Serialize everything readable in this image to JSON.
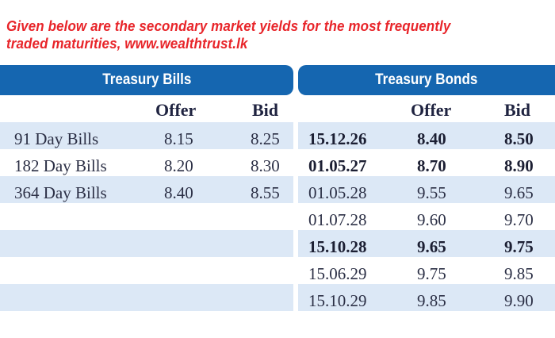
{
  "caption": {
    "line1": "Given below are the secondary market yields for the most frequently",
    "line2": "traded maturities, www.wealthtrust.lk"
  },
  "colors": {
    "caption": "#e8252a",
    "band": "#1566b0",
    "row_shade": "#dce8f6"
  },
  "bills": {
    "title": "Treasury Bills",
    "offer_header": "Offer",
    "bid_header": "Bid",
    "rows": [
      {
        "name": "91 Day Bills",
        "offer": "8.15",
        "bid": "8.25"
      },
      {
        "name": "182 Day Bills",
        "offer": "8.20",
        "bid": "8.30"
      },
      {
        "name": "364 Day Bills",
        "offer": "8.40",
        "bid": "8.55"
      }
    ]
  },
  "bonds": {
    "title": "Treasury Bonds",
    "offer_header": "Offer",
    "bid_header": "Bid",
    "rows": [
      {
        "maturity": "15.12.26",
        "offer": "8.40",
        "bid": "8.50",
        "bold": true
      },
      {
        "maturity": "01.05.27",
        "offer": "8.70",
        "bid": "8.90",
        "bold": true
      },
      {
        "maturity": "01.05.28",
        "offer": "9.55",
        "bid": "9.65",
        "bold": false
      },
      {
        "maturity": "01.07.28",
        "offer": "9.60",
        "bid": "9.70",
        "bold": false
      },
      {
        "maturity": "15.10.28",
        "offer": "9.65",
        "bid": "9.75",
        "bold": true
      },
      {
        "maturity": "15.06.29",
        "offer": "9.75",
        "bid": "9.85",
        "bold": false
      },
      {
        "maturity": "15.10.29",
        "offer": "9.85",
        "bid": "9.90",
        "bold": false
      }
    ]
  }
}
